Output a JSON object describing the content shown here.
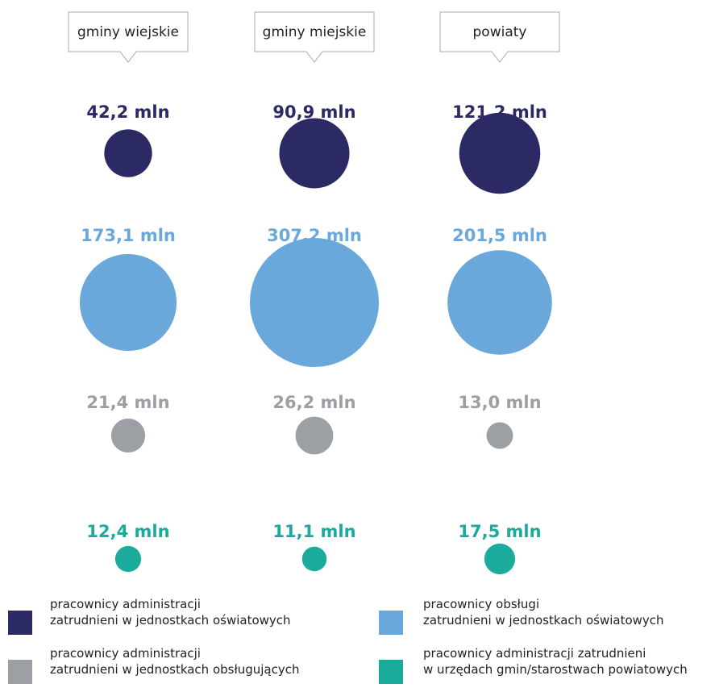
{
  "chart_data": {
    "type": "bubble",
    "categories": [
      "gminy wiejskie",
      "gminy miejskie",
      "powiaty"
    ],
    "series": [
      {
        "name": "pracownicy administracji\nzatrudnieni w jednostkach oświatowych",
        "color": "#2b2a64",
        "values": [
          42.2,
          90.9,
          121.2
        ],
        "value_labels": [
          "42,2 mln",
          "90,9 mln",
          "121,2 mln"
        ]
      },
      {
        "name": "pracownicy obsługi\nzatrudnieni w jednostkach oświatowych",
        "color": "#6aa8dc",
        "values": [
          173.1,
          307.2,
          201.5
        ],
        "value_labels": [
          "173,1 mln",
          "307,2 mln",
          "201,5 mln"
        ]
      },
      {
        "name": "pracownicy administracji\nzatrudnieni w jednostkach obsługujących",
        "color": "#9c9fa3",
        "values": [
          21.4,
          26.2,
          13.0
        ],
        "value_labels": [
          "21,4 mln",
          "26,2 mln",
          "13,0 mln"
        ]
      },
      {
        "name": "pracownicy administracji zatrudnieni\nw urzędach gmin/starostwach powiatowych",
        "color": "#1aab9c",
        "values": [
          12.4,
          11.1,
          17.5
        ],
        "value_labels": [
          "12,4 mln",
          "11,1 mln",
          "17,5 mln"
        ]
      }
    ]
  }
}
